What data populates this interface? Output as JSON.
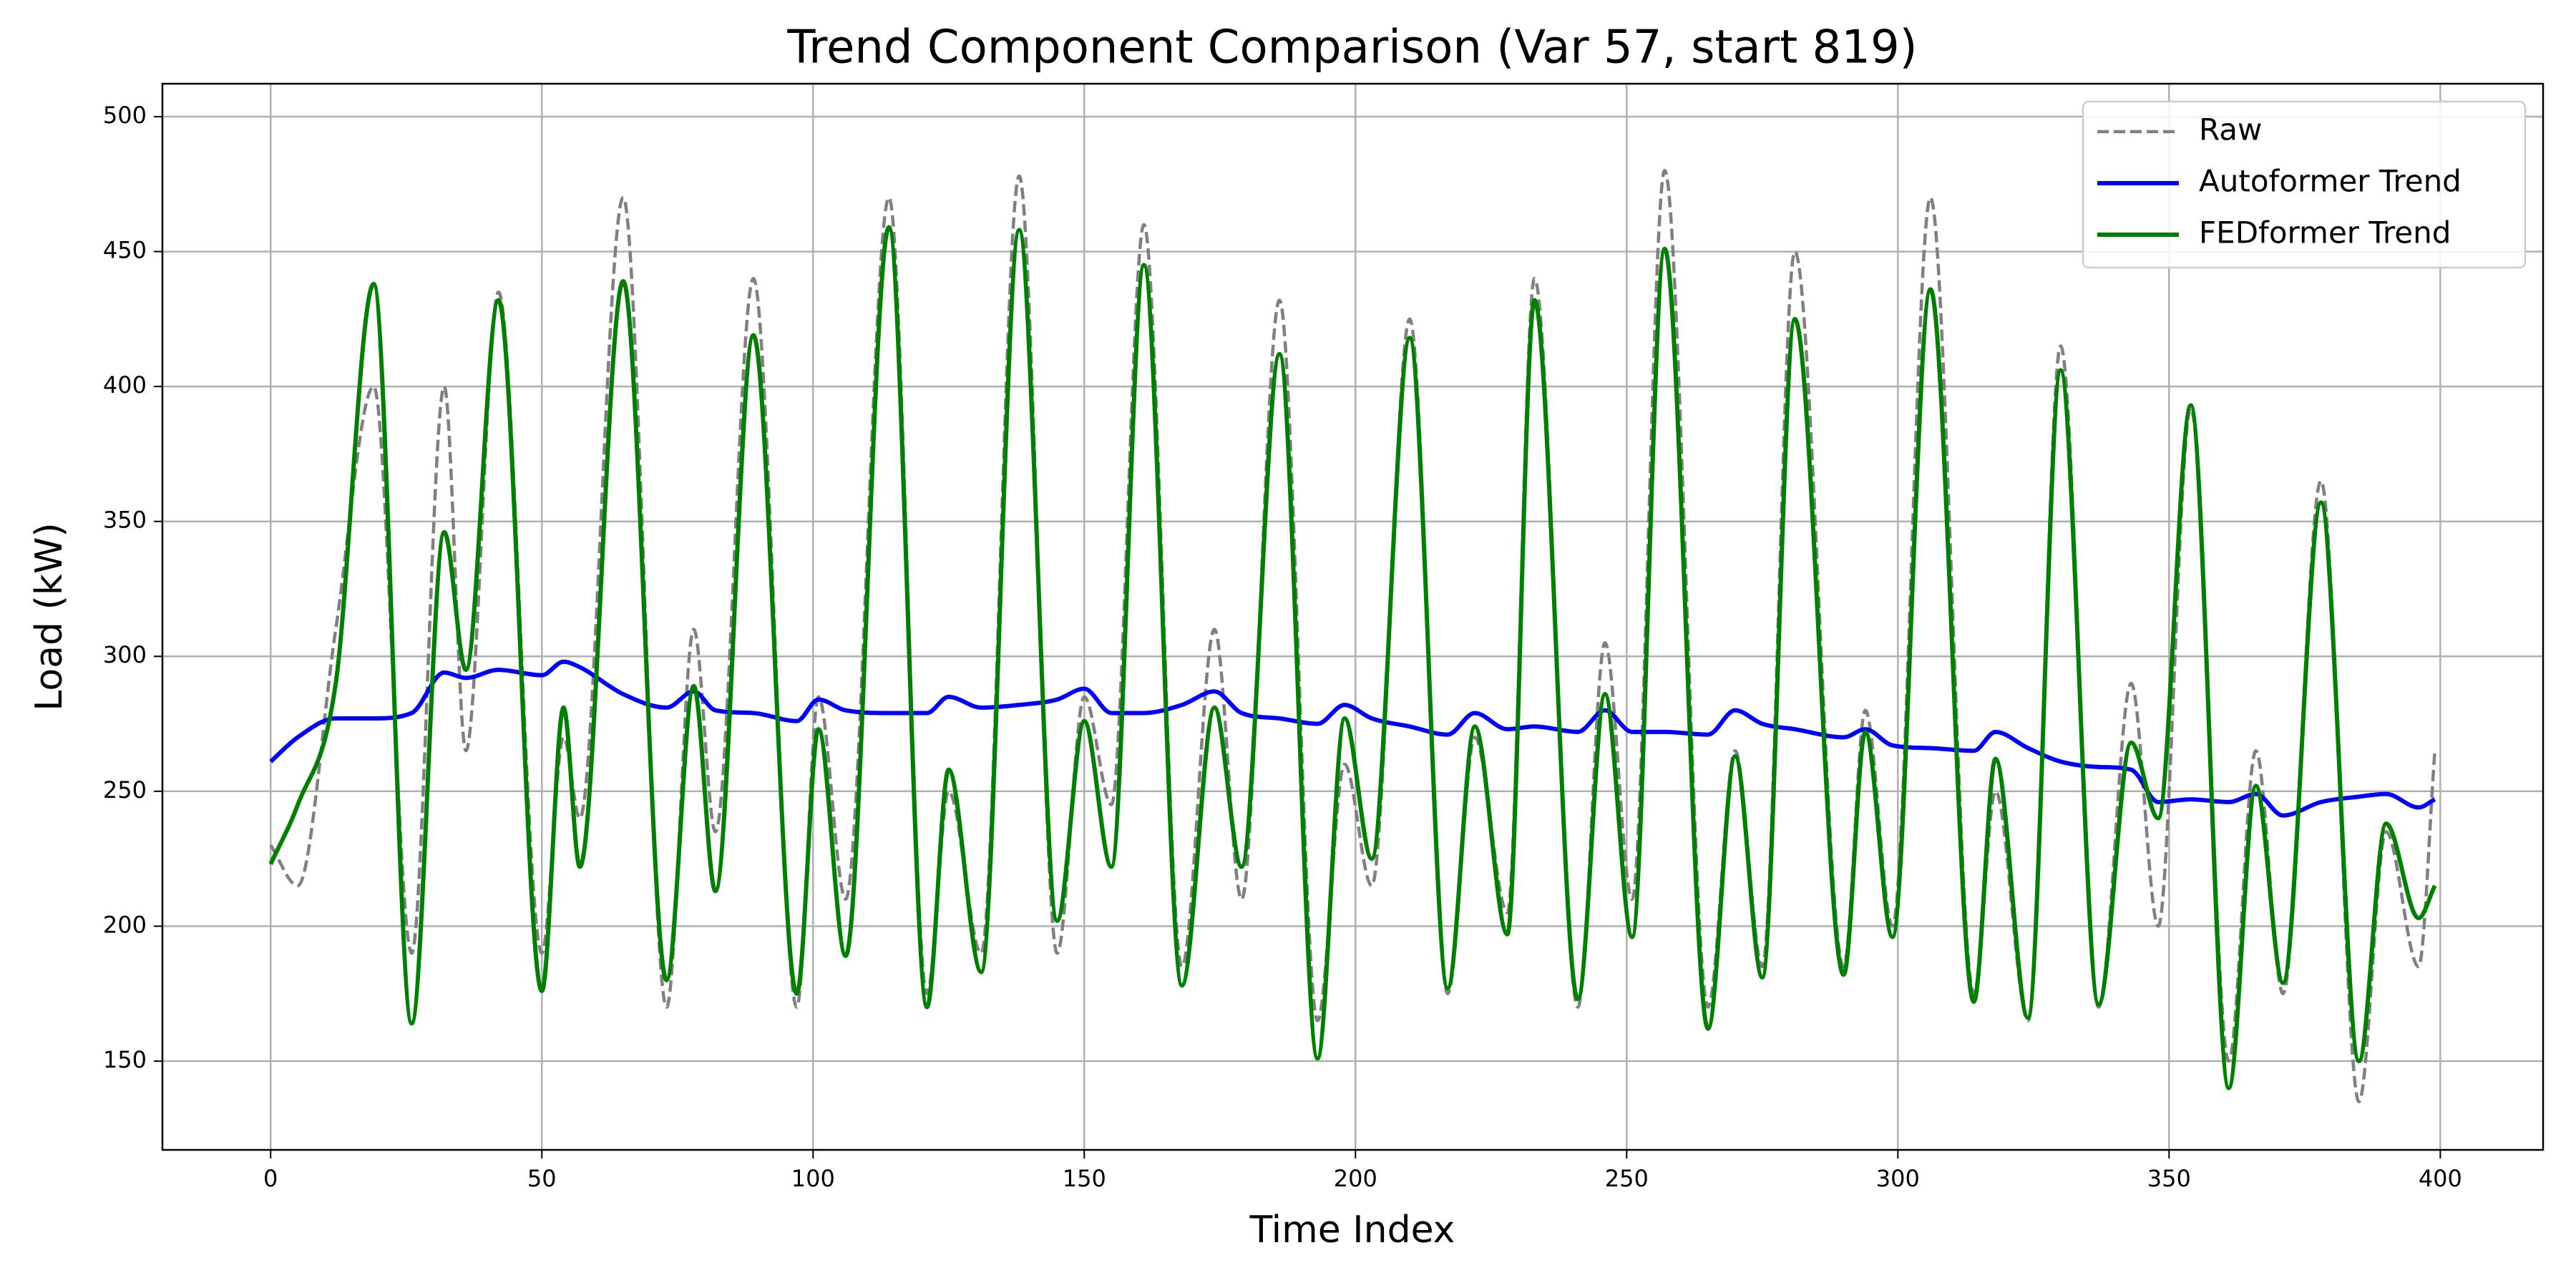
{
  "chart_data": {
    "type": "line",
    "title": "Trend Component Comparison (Var 57, start 819)",
    "x_label": "Time Index",
    "y_label": "Load (kW)",
    "x": [
      0,
      5,
      12,
      19,
      26,
      32,
      36,
      42,
      50,
      54,
      57,
      65,
      73,
      78,
      82,
      89,
      97,
      101,
      106,
      114,
      121,
      125,
      131,
      138,
      145,
      150,
      155,
      161,
      168,
      174,
      179,
      186,
      193,
      198,
      203,
      210,
      217,
      222,
      228,
      233,
      241,
      246,
      251,
      257,
      265,
      270,
      275,
      281,
      290,
      294,
      299,
      306,
      314,
      318,
      324,
      330,
      337,
      343,
      348,
      354,
      361,
      366,
      371,
      378,
      385,
      390,
      396,
      399
    ],
    "series": [
      {
        "name": "Raw",
        "color": "#808080",
        "linestyle": "dashed",
        "values": [
          230,
          215,
          310,
          400,
          190,
          400,
          265,
          435,
          190,
          270,
          240,
          470,
          170,
          310,
          235,
          440,
          170,
          285,
          210,
          470,
          175,
          250,
          190,
          478,
          190,
          285,
          245,
          460,
          185,
          310,
          210,
          432,
          165,
          260,
          215,
          425,
          175,
          270,
          205,
          440,
          170,
          305,
          210,
          480,
          170,
          265,
          185,
          450,
          185,
          280,
          200,
          470,
          175,
          250,
          165,
          415,
          170,
          290,
          200,
          392,
          150,
          265,
          175,
          365,
          135,
          235,
          185,
          265
        ]
      },
      {
        "name": "Autoformer Trend",
        "color": "#0000ff",
        "linestyle": "solid",
        "values": [
          261,
          270,
          277,
          277,
          279,
          294,
          292,
          295,
          293,
          298,
          296,
          286,
          281,
          287,
          280,
          279,
          276,
          284,
          280,
          279,
          279,
          285,
          281,
          282,
          284,
          288,
          279,
          279,
          282,
          287,
          279,
          277,
          275,
          282,
          277,
          274,
          271,
          279,
          273,
          274,
          272,
          280,
          272,
          272,
          271,
          280,
          275,
          273,
          270,
          273,
          267,
          266,
          265,
          272,
          266,
          261,
          259,
          258,
          246,
          247,
          246,
          249,
          241,
          246,
          248,
          249,
          244,
          247
        ]
      },
      {
        "name": "FEDformer Trend",
        "color": "#008000",
        "linestyle": "solid",
        "values": [
          223,
          245,
          290,
          438,
          164,
          346,
          295,
          432,
          176,
          281,
          222,
          439,
          180,
          289,
          213,
          419,
          175,
          273,
          189,
          459,
          170,
          258,
          183,
          458,
          202,
          276,
          222,
          445,
          178,
          281,
          222,
          412,
          151,
          277,
          225,
          418,
          177,
          274,
          197,
          432,
          173,
          286,
          196,
          451,
          162,
          263,
          181,
          425,
          182,
          272,
          196,
          436,
          172,
          262,
          166,
          406,
          171,
          268,
          240,
          393,
          140,
          252,
          179,
          357,
          150,
          238,
          203,
          215
        ]
      }
    ],
    "xlim": [
      -19.95,
      418.95
    ],
    "ylim": [
      117.1,
      512.2
    ],
    "xticks": [
      0,
      50,
      100,
      150,
      200,
      250,
      300,
      350,
      400
    ],
    "yticks": [
      150,
      200,
      250,
      300,
      350,
      400,
      450,
      500
    ],
    "grid": true,
    "legend": "upper right"
  }
}
